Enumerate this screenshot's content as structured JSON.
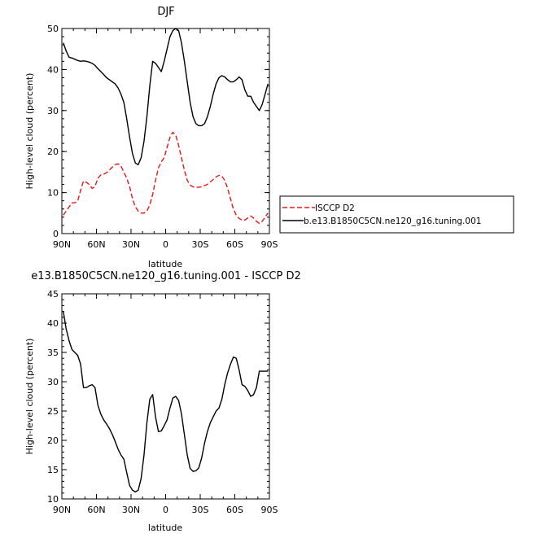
{
  "chart_data": [
    {
      "type": "line",
      "title": "DJF",
      "xlabel": "latitude",
      "ylabel": "High-level cloud (percent)",
      "xlim": [
        90,
        -90
      ],
      "ylim": [
        0,
        50
      ],
      "x_ticks": [
        90,
        60,
        30,
        0,
        -30,
        -60,
        -90
      ],
      "x_tick_labels": [
        "90N",
        "60N",
        "30N",
        "0",
        "30S",
        "60S",
        "90S"
      ],
      "y_ticks": [
        0,
        10,
        20,
        30,
        40,
        50
      ],
      "y_tick_labels": [
        "0",
        "10",
        "20",
        "30",
        "40",
        "50"
      ],
      "legend_position": "right",
      "series": [
        {
          "name": "ISCCP D2",
          "color": "#e8161b",
          "style": "dashed",
          "x": [
            88.75,
            86.25,
            83.75,
            81.25,
            78.75,
            76.25,
            73.75,
            71.25,
            68.75,
            66.25,
            63.75,
            61.25,
            58.75,
            56.25,
            53.75,
            51.25,
            48.75,
            46.25,
            43.75,
            41.25,
            38.75,
            36.25,
            33.75,
            31.25,
            28.75,
            26.25,
            23.75,
            21.25,
            18.75,
            16.25,
            13.75,
            11.25,
            8.75,
            6.25,
            3.75,
            1.25,
            -1.25,
            -3.75,
            -6.25,
            -8.75,
            -11.25,
            -13.75,
            -16.25,
            -18.75,
            -21.25,
            -23.75,
            -26.25,
            -28.75,
            -31.25,
            -33.75,
            -36.25,
            -38.75,
            -41.25,
            -43.75,
            -46.25,
            -48.75,
            -51.25,
            -53.75,
            -56.25,
            -58.75,
            -61.25,
            -63.75,
            -66.25,
            -68.75,
            -71.25,
            -73.75,
            -76.25,
            -78.75,
            -81.25,
            -83.75,
            -86.25,
            -88.75
          ],
          "values": [
            4.5,
            5.5,
            6.5,
            7.5,
            7.5,
            8.0,
            10.5,
            12.8,
            12.5,
            12.0,
            11.0,
            11.5,
            13.5,
            14.3,
            14.5,
            14.8,
            15.5,
            16.2,
            16.8,
            17.0,
            16.5,
            15.0,
            13.5,
            11.5,
            8.5,
            6.5,
            5.5,
            5.0,
            5.0,
            5.5,
            7.0,
            9.5,
            13.0,
            16.0,
            17.5,
            18.5,
            21.0,
            23.5,
            24.7,
            24.0,
            21.5,
            18.5,
            15.5,
            13.0,
            11.8,
            11.4,
            11.3,
            11.3,
            11.4,
            11.7,
            12.0,
            12.6,
            13.2,
            13.8,
            14.2,
            14.0,
            13.0,
            11.0,
            8.5,
            6.0,
            4.5,
            3.7,
            3.3,
            3.3,
            3.8,
            4.3,
            3.8,
            3.0,
            2.5,
            3.0,
            4.0,
            5.0
          ]
        },
        {
          "name": "b.e13.B1850C5CN.ne120_g16.tuning.001",
          "color": "#000000",
          "style": "solid",
          "x": [
            88.75,
            86.25,
            83.75,
            81.25,
            78.75,
            76.25,
            73.75,
            71.25,
            68.75,
            66.25,
            63.75,
            61.25,
            58.75,
            56.25,
            53.75,
            51.25,
            48.75,
            46.25,
            43.75,
            41.25,
            38.75,
            36.25,
            33.75,
            31.25,
            28.75,
            26.25,
            23.75,
            21.25,
            18.75,
            16.25,
            13.75,
            11.25,
            8.75,
            6.25,
            3.75,
            1.25,
            -1.25,
            -3.75,
            -6.25,
            -8.75,
            -11.25,
            -13.75,
            -16.25,
            -18.75,
            -21.25,
            -23.75,
            -26.25,
            -28.75,
            -31.25,
            -33.75,
            -36.25,
            -38.75,
            -41.25,
            -43.75,
            -46.25,
            -48.75,
            -51.25,
            -53.75,
            -56.25,
            -58.75,
            -61.25,
            -63.75,
            -66.25,
            -68.75,
            -71.25,
            -73.75,
            -76.25,
            -78.75,
            -81.25,
            -83.75,
            -86.25,
            -88.75
          ],
          "values": [
            46.5,
            44.5,
            43.0,
            42.8,
            42.5,
            42.2,
            42.0,
            42.1,
            42.0,
            41.8,
            41.5,
            41.0,
            40.2,
            39.5,
            38.8,
            38.0,
            37.5,
            37.0,
            36.5,
            35.5,
            34.0,
            32.0,
            28.0,
            23.5,
            19.5,
            17.2,
            16.8,
            18.5,
            22.5,
            28.5,
            36.0,
            42.0,
            41.5,
            40.5,
            39.5,
            42.0,
            45.0,
            48.0,
            49.5,
            50.0,
            49.5,
            46.5,
            42.0,
            37.0,
            32.0,
            28.5,
            26.8,
            26.3,
            26.3,
            26.8,
            28.5,
            31.0,
            34.0,
            36.5,
            38.0,
            38.5,
            38.2,
            37.5,
            37.0,
            37.0,
            37.5,
            38.2,
            37.5,
            35.0,
            33.5,
            33.5,
            32.0,
            31.0,
            30.0,
            31.5,
            34.0,
            36.5
          ]
        }
      ]
    },
    {
      "type": "line",
      "title": "e13.B1850C5CN.ne120_g16.tuning.001 - ISCCP D2",
      "xlabel": "latitude",
      "ylabel": "High-level cloud (percent)",
      "xlim": [
        90,
        -90
      ],
      "ylim": [
        10,
        45
      ],
      "x_ticks": [
        90,
        60,
        30,
        0,
        -30,
        -60,
        -90
      ],
      "x_tick_labels": [
        "90N",
        "60N",
        "30N",
        "0",
        "30S",
        "60S",
        "90S"
      ],
      "y_ticks": [
        10,
        15,
        20,
        25,
        30,
        35,
        40,
        45
      ],
      "y_tick_labels": [
        "10",
        "15",
        "20",
        "25",
        "30",
        "35",
        "40",
        "45"
      ],
      "series": [
        {
          "color": "#000000",
          "style": "solid",
          "x": [
            88.75,
            86.25,
            83.75,
            81.25,
            78.75,
            76.25,
            73.75,
            71.25,
            68.75,
            66.25,
            63.75,
            61.25,
            58.75,
            56.25,
            53.75,
            51.25,
            48.75,
            46.25,
            43.75,
            41.25,
            38.75,
            36.25,
            33.75,
            31.25,
            28.75,
            26.25,
            23.75,
            21.25,
            18.75,
            16.25,
            13.75,
            11.25,
            8.75,
            6.25,
            3.75,
            1.25,
            -1.25,
            -3.75,
            -6.25,
            -8.75,
            -11.25,
            -13.75,
            -16.25,
            -18.75,
            -21.25,
            -23.75,
            -26.25,
            -28.75,
            -31.25,
            -33.75,
            -36.25,
            -38.75,
            -41.25,
            -43.75,
            -46.25,
            -48.75,
            -51.25,
            -53.75,
            -56.25,
            -58.75,
            -61.25,
            -63.75,
            -66.25,
            -68.75,
            -71.25,
            -73.75,
            -76.25,
            -78.75,
            -81.25,
            -83.75,
            -86.25,
            -88.75
          ],
          "values": [
            42.0,
            39.0,
            37.0,
            35.5,
            35.0,
            34.5,
            33.0,
            29.0,
            29.0,
            29.3,
            29.5,
            29.0,
            26.0,
            24.5,
            23.5,
            22.8,
            22.0,
            21.0,
            19.8,
            18.5,
            17.5,
            16.8,
            14.5,
            12.3,
            11.5,
            11.2,
            11.5,
            13.5,
            17.5,
            23.0,
            27.0,
            27.8,
            24.0,
            21.5,
            21.6,
            22.5,
            23.5,
            25.5,
            27.2,
            27.5,
            26.8,
            24.5,
            21.0,
            17.5,
            15.2,
            14.7,
            14.8,
            15.3,
            17.0,
            19.5,
            21.5,
            23.0,
            24.0,
            25.0,
            25.5,
            27.0,
            29.5,
            31.5,
            33.0,
            34.2,
            34.0,
            32.0,
            29.5,
            29.2,
            28.5,
            27.5,
            27.8,
            29.0,
            31.8,
            31.8,
            31.8,
            31.8
          ]
        }
      ]
    }
  ]
}
